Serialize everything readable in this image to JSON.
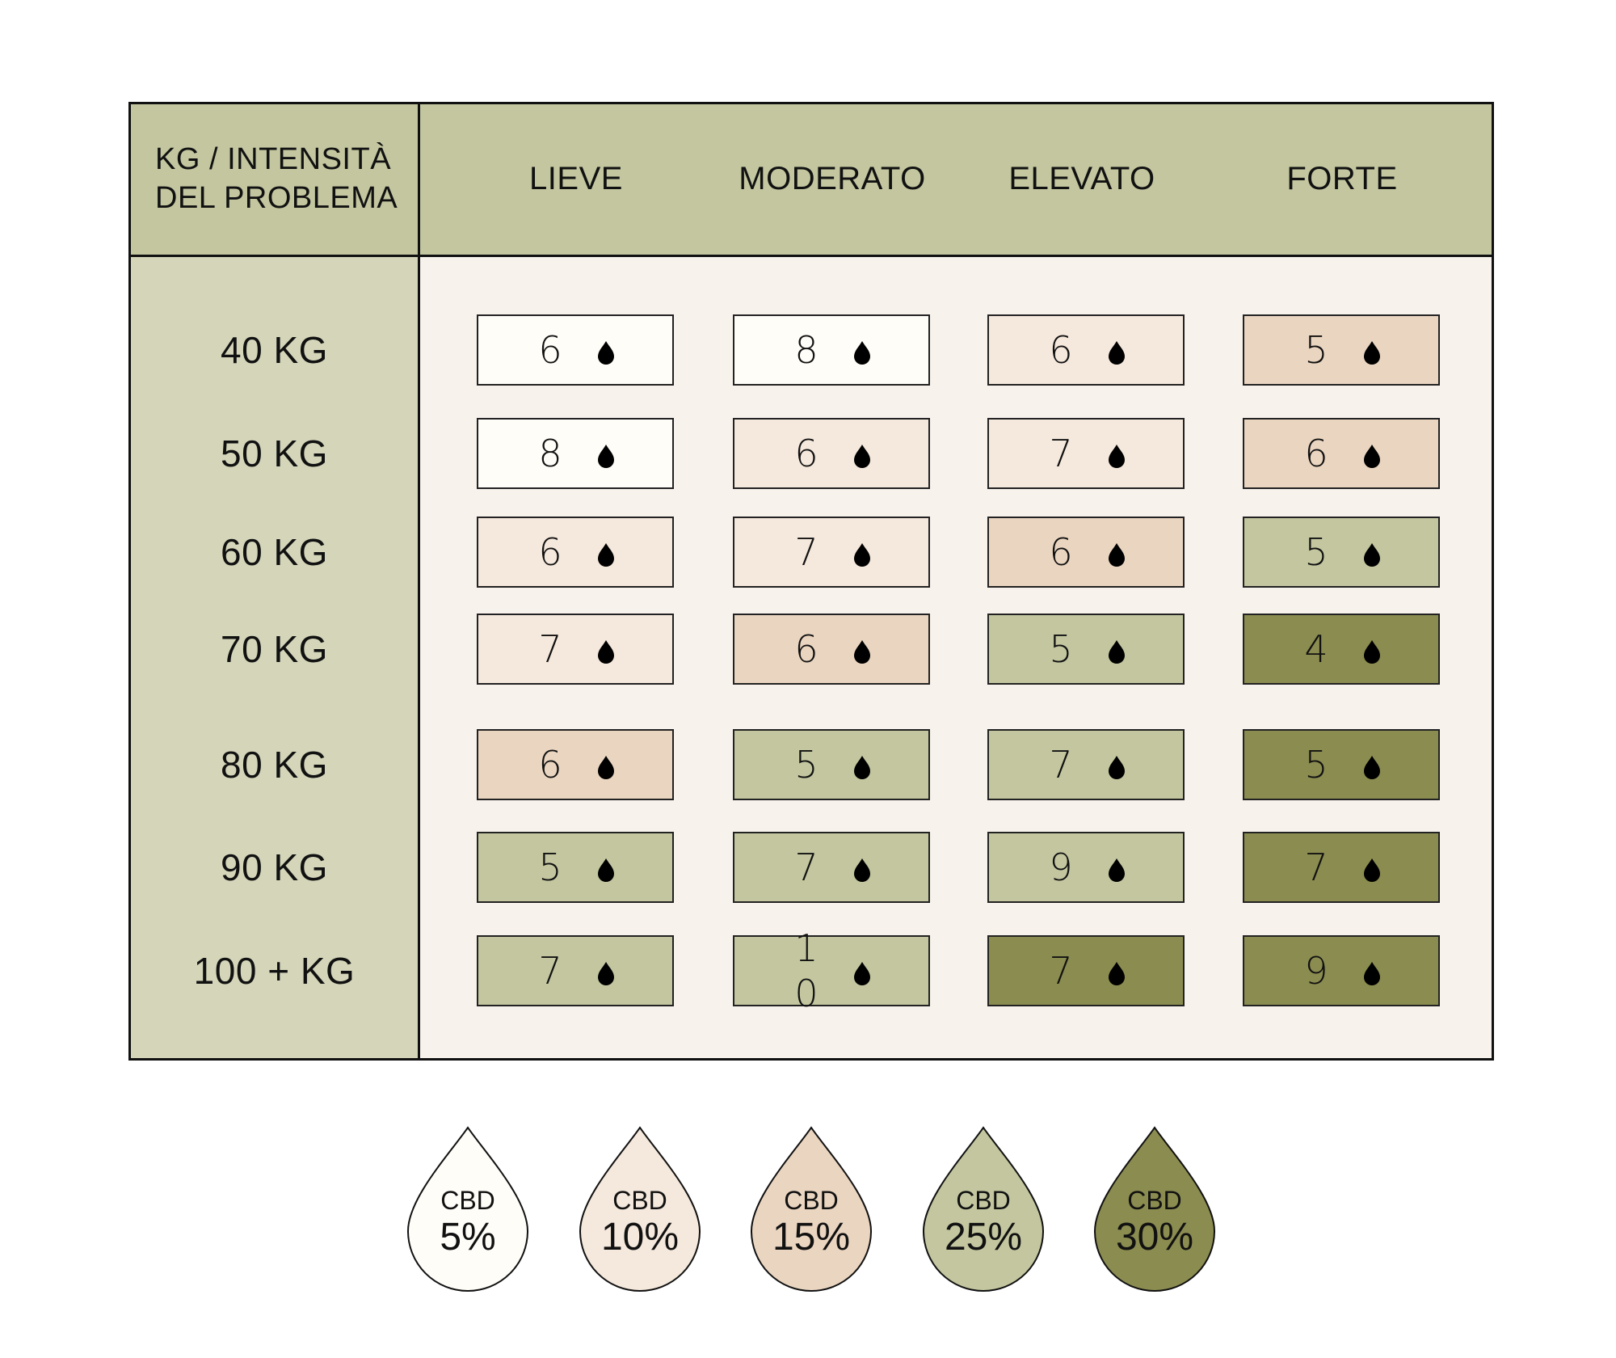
{
  "header": {
    "corner_line1": "KG / INTENSITÀ",
    "corner_line2": "DEL PROBLEMA",
    "columns": [
      "LIEVE",
      "MODERATO",
      "ELEVATO",
      "FORTE"
    ]
  },
  "colors": {
    "5": "#fffdf8",
    "10": "#f5e8dc",
    "15": "#ead5c0",
    "25": "#c3c69f",
    "30": "#8b8c50",
    "header_bg": "#c3c69f",
    "row_label_bg": "#d4d5b9",
    "body_bg": "#f8f2ec"
  },
  "drop_icon": "drop-icon",
  "rows": [
    {
      "label": "40 KG",
      "cells": [
        {
          "value": "6",
          "cbd": "5"
        },
        {
          "value": "8",
          "cbd": "5"
        },
        {
          "value": "6",
          "cbd": "10"
        },
        {
          "value": "5",
          "cbd": "15"
        }
      ]
    },
    {
      "label": "50 KG",
      "cells": [
        {
          "value": "8",
          "cbd": "5"
        },
        {
          "value": "6",
          "cbd": "10"
        },
        {
          "value": "7",
          "cbd": "10"
        },
        {
          "value": "6",
          "cbd": "15"
        }
      ]
    },
    {
      "label": "60 KG",
      "cells": [
        {
          "value": "6",
          "cbd": "10"
        },
        {
          "value": "7",
          "cbd": "10"
        },
        {
          "value": "6",
          "cbd": "15"
        },
        {
          "value": "5",
          "cbd": "25"
        }
      ]
    },
    {
      "label": "70 KG",
      "cells": [
        {
          "value": "7",
          "cbd": "10"
        },
        {
          "value": "6",
          "cbd": "15"
        },
        {
          "value": "5",
          "cbd": "25"
        },
        {
          "value": "4",
          "cbd": "30"
        }
      ]
    },
    {
      "label": "80 KG",
      "cells": [
        {
          "value": "6",
          "cbd": "15"
        },
        {
          "value": "5",
          "cbd": "25"
        },
        {
          "value": "7",
          "cbd": "25"
        },
        {
          "value": "5",
          "cbd": "30"
        }
      ]
    },
    {
      "label": "90 KG",
      "cells": [
        {
          "value": "5",
          "cbd": "25"
        },
        {
          "value": "7",
          "cbd": "25"
        },
        {
          "value": "9",
          "cbd": "25"
        },
        {
          "value": "7",
          "cbd": "30"
        }
      ]
    },
    {
      "label": "100 + KG",
      "cells": [
        {
          "value": "7",
          "cbd": "25"
        },
        {
          "value": "10",
          "cbd": "25"
        },
        {
          "value": "7",
          "cbd": "30"
        },
        {
          "value": "9",
          "cbd": "30"
        }
      ]
    }
  ],
  "legend": [
    {
      "label": "CBD",
      "percent": "5%",
      "key": "5"
    },
    {
      "label": "CBD",
      "percent": "10%",
      "key": "10"
    },
    {
      "label": "CBD",
      "percent": "15%",
      "key": "15"
    },
    {
      "label": "CBD",
      "percent": "25%",
      "key": "25"
    },
    {
      "label": "CBD",
      "percent": "30%",
      "key": "30"
    }
  ]
}
